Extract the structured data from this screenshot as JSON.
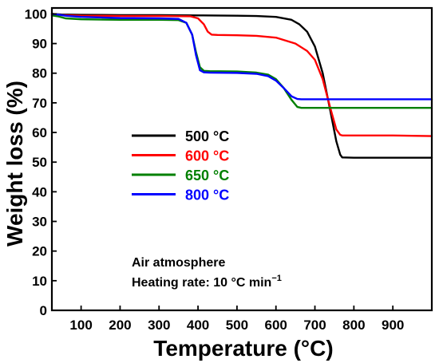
{
  "chart_data": {
    "type": "line",
    "xlabel": "Temperature (°C)",
    "ylabel": "Weight loss (%)",
    "xlim": [
      25,
      1000
    ],
    "ylim": [
      0,
      102
    ],
    "xticks": [
      100,
      200,
      300,
      400,
      500,
      600,
      700,
      800,
      900
    ],
    "yticks": [
      0,
      10,
      20,
      30,
      40,
      50,
      60,
      70,
      80,
      90,
      100
    ],
    "grid": false,
    "legend_position": "center-left",
    "series": [
      {
        "name": "500 °C",
        "color": "#000000",
        "x": [
          25,
          50,
          100,
          200,
          300,
          400,
          500,
          550,
          600,
          640,
          660,
          680,
          700,
          720,
          740,
          755,
          765,
          770,
          800,
          900,
          1000
        ],
        "y": [
          100,
          99.8,
          99.7,
          99.6,
          99.6,
          99.5,
          99.4,
          99.3,
          99.0,
          98.0,
          96.5,
          94.0,
          89.0,
          80.0,
          67.0,
          57.0,
          52.5,
          51.6,
          51.5,
          51.5,
          51.5
        ]
      },
      {
        "name": "600 °C",
        "color": "#ff0000",
        "x": [
          25,
          50,
          100,
          200,
          300,
          380,
          400,
          415,
          425,
          435,
          450,
          500,
          550,
          600,
          650,
          680,
          700,
          720,
          740,
          755,
          765,
          770,
          800,
          900,
          1000
        ],
        "y": [
          100,
          99.6,
          99.4,
          99.3,
          99.3,
          99.2,
          98.5,
          96.5,
          94.0,
          93.0,
          92.9,
          92.8,
          92.6,
          92.0,
          90.0,
          87.5,
          84.5,
          78.0,
          68.0,
          61.0,
          59.2,
          59.0,
          59.0,
          59.0,
          58.8
        ]
      },
      {
        "name": "650 °C",
        "color": "#008000",
        "x": [
          25,
          40,
          60,
          100,
          200,
          300,
          350,
          370,
          385,
          395,
          405,
          415,
          430,
          500,
          550,
          580,
          600,
          620,
          640,
          655,
          665,
          700,
          800,
          900,
          1000
        ],
        "y": [
          99.5,
          99.2,
          98.5,
          98.2,
          98.0,
          98.0,
          97.9,
          97.0,
          93.0,
          87.0,
          82.0,
          80.8,
          80.7,
          80.6,
          80.2,
          79.5,
          78.0,
          75.0,
          71.0,
          68.6,
          68.3,
          68.3,
          68.3,
          68.3,
          68.3
        ]
      },
      {
        "name": "800 °C",
        "color": "#0000ff",
        "x": [
          25,
          40,
          60,
          100,
          200,
          300,
          350,
          370,
          385,
          395,
          405,
          415,
          430,
          500,
          550,
          580,
          600,
          620,
          640,
          655,
          665,
          700,
          800,
          900,
          1000
        ],
        "y": [
          100,
          99.8,
          99.4,
          99.0,
          98.6,
          98.5,
          98.3,
          97.0,
          93.0,
          86.0,
          81.0,
          80.3,
          80.2,
          80.1,
          79.8,
          79.0,
          77.5,
          75.0,
          72.2,
          71.3,
          71.2,
          71.2,
          71.2,
          71.2,
          71.2
        ]
      }
    ],
    "annotations": [
      {
        "text": "Air atmosphere"
      },
      {
        "text": "Heating rate: 10 °C min",
        "superscript": "−1"
      }
    ]
  }
}
